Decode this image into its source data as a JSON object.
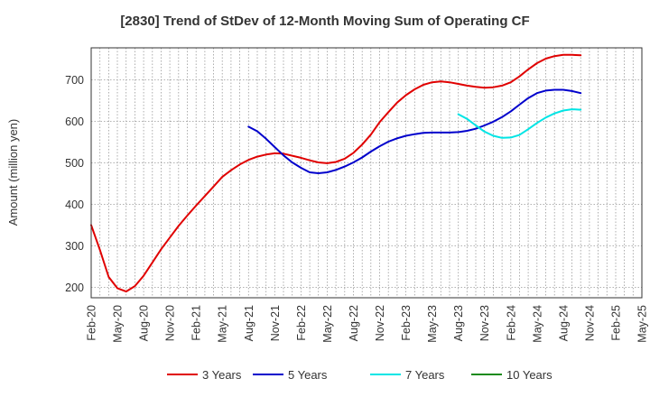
{
  "chart_data": {
    "type": "line",
    "title": "[2830]  Trend of StDev of 12-Month Moving Sum of Operating CF",
    "xlabel": "",
    "ylabel": "Amount (million yen)",
    "ylim": [
      175,
      777
    ],
    "yticks": [
      200,
      300,
      400,
      500,
      600,
      700
    ],
    "grid": true,
    "legend_position": "bottom",
    "x_ticks": [
      "Feb-20",
      "May-20",
      "Aug-20",
      "Nov-20",
      "Feb-21",
      "May-21",
      "Aug-21",
      "Nov-21",
      "Feb-22",
      "May-22",
      "Aug-22",
      "Nov-22",
      "Feb-23",
      "May-23",
      "Aug-23",
      "Nov-23",
      "Feb-24",
      "May-24",
      "Aug-24",
      "Nov-24",
      "Feb-25",
      "May-25"
    ],
    "x_start": "2020-02",
    "x_end": "2025-05",
    "series": [
      {
        "name": "3 Years",
        "color": "#e00000",
        "points": [
          [
            "2020-02",
            350
          ],
          [
            "2020-03",
            290
          ],
          [
            "2020-04",
            225
          ],
          [
            "2020-05",
            198
          ],
          [
            "2020-06",
            190
          ],
          [
            "2020-07",
            203
          ],
          [
            "2020-08",
            228
          ],
          [
            "2020-09",
            260
          ],
          [
            "2020-10",
            292
          ],
          [
            "2020-11",
            320
          ],
          [
            "2020-12",
            348
          ],
          [
            "2021-01",
            373
          ],
          [
            "2021-02",
            397
          ],
          [
            "2021-03",
            420
          ],
          [
            "2021-04",
            443
          ],
          [
            "2021-05",
            466
          ],
          [
            "2021-06",
            482
          ],
          [
            "2021-07",
            496
          ],
          [
            "2021-08",
            507
          ],
          [
            "2021-09",
            515
          ],
          [
            "2021-10",
            520
          ],
          [
            "2021-11",
            523
          ],
          [
            "2021-12",
            522
          ],
          [
            "2022-01",
            517
          ],
          [
            "2022-02",
            512
          ],
          [
            "2022-03",
            506
          ],
          [
            "2022-04",
            501
          ],
          [
            "2022-05",
            499
          ],
          [
            "2022-06",
            502
          ],
          [
            "2022-07",
            510
          ],
          [
            "2022-08",
            524
          ],
          [
            "2022-09",
            544
          ],
          [
            "2022-10",
            568
          ],
          [
            "2022-11",
            598
          ],
          [
            "2022-12",
            622
          ],
          [
            "2023-01",
            645
          ],
          [
            "2023-02",
            663
          ],
          [
            "2023-03",
            677
          ],
          [
            "2023-04",
            688
          ],
          [
            "2023-05",
            694
          ],
          [
            "2023-06",
            696
          ],
          [
            "2023-07",
            694
          ],
          [
            "2023-08",
            690
          ],
          [
            "2023-09",
            686
          ],
          [
            "2023-10",
            683
          ],
          [
            "2023-11",
            681
          ],
          [
            "2023-12",
            682
          ],
          [
            "2024-01",
            686
          ],
          [
            "2024-02",
            694
          ],
          [
            "2024-03",
            708
          ],
          [
            "2024-04",
            725
          ],
          [
            "2024-05",
            740
          ],
          [
            "2024-06",
            751
          ],
          [
            "2024-07",
            757
          ],
          [
            "2024-08",
            760
          ],
          [
            "2024-09",
            760
          ],
          [
            "2024-10",
            759
          ]
        ]
      },
      {
        "name": "5 Years",
        "color": "#0000cc",
        "points": [
          [
            "2021-08",
            587
          ],
          [
            "2021-09",
            576
          ],
          [
            "2021-10",
            558
          ],
          [
            "2021-11",
            538
          ],
          [
            "2021-12",
            518
          ],
          [
            "2022-01",
            501
          ],
          [
            "2022-02",
            488
          ],
          [
            "2022-03",
            477
          ],
          [
            "2022-04",
            475
          ],
          [
            "2022-05",
            477
          ],
          [
            "2022-06",
            483
          ],
          [
            "2022-07",
            491
          ],
          [
            "2022-08",
            501
          ],
          [
            "2022-09",
            513
          ],
          [
            "2022-10",
            527
          ],
          [
            "2022-11",
            540
          ],
          [
            "2022-12",
            551
          ],
          [
            "2023-01",
            559
          ],
          [
            "2023-02",
            565
          ],
          [
            "2023-03",
            569
          ],
          [
            "2023-04",
            572
          ],
          [
            "2023-05",
            573
          ],
          [
            "2023-06",
            573
          ],
          [
            "2023-07",
            573
          ],
          [
            "2023-08",
            574
          ],
          [
            "2023-09",
            577
          ],
          [
            "2023-10",
            582
          ],
          [
            "2023-11",
            590
          ],
          [
            "2023-12",
            599
          ],
          [
            "2024-01",
            610
          ],
          [
            "2024-02",
            624
          ],
          [
            "2024-03",
            640
          ],
          [
            "2024-04",
            656
          ],
          [
            "2024-05",
            668
          ],
          [
            "2024-06",
            674
          ],
          [
            "2024-07",
            676
          ],
          [
            "2024-08",
            676
          ],
          [
            "2024-09",
            673
          ],
          [
            "2024-10",
            668
          ]
        ]
      },
      {
        "name": "7 Years",
        "color": "#00e5e5",
        "points": [
          [
            "2023-08",
            617
          ],
          [
            "2023-09",
            606
          ],
          [
            "2023-10",
            590
          ],
          [
            "2023-11",
            575
          ],
          [
            "2023-12",
            565
          ],
          [
            "2024-01",
            560
          ],
          [
            "2024-02",
            561
          ],
          [
            "2024-03",
            567
          ],
          [
            "2024-04",
            581
          ],
          [
            "2024-05",
            596
          ],
          [
            "2024-06",
            609
          ],
          [
            "2024-07",
            619
          ],
          [
            "2024-08",
            626
          ],
          [
            "2024-09",
            629
          ],
          [
            "2024-10",
            628
          ]
        ]
      },
      {
        "name": "10 Years",
        "color": "#1a8a1a",
        "points": []
      }
    ]
  }
}
